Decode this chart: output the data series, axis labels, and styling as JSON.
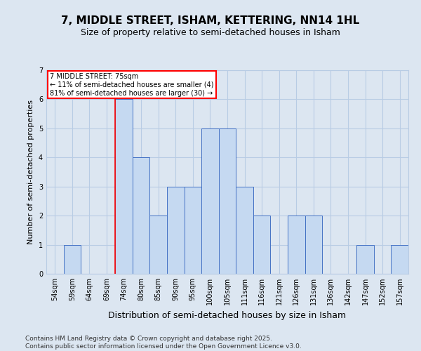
{
  "title1": "7, MIDDLE STREET, ISHAM, KETTERING, NN14 1HL",
  "title2": "Size of property relative to semi-detached houses in Isham",
  "xlabel": "Distribution of semi-detached houses by size in Isham",
  "ylabel": "Number of semi-detached properties",
  "categories": [
    "54sqm",
    "59sqm",
    "64sqm",
    "69sqm",
    "74sqm",
    "80sqm",
    "85sqm",
    "90sqm",
    "95sqm",
    "100sqm",
    "105sqm",
    "111sqm",
    "116sqm",
    "121sqm",
    "126sqm",
    "131sqm",
    "136sqm",
    "142sqm",
    "147sqm",
    "152sqm",
    "157sqm"
  ],
  "values": [
    0,
    1,
    0,
    0,
    6,
    4,
    2,
    3,
    3,
    5,
    5,
    3,
    2,
    0,
    2,
    2,
    0,
    0,
    1,
    0,
    1
  ],
  "bar_color": "#c5d9f1",
  "bar_edge_color": "#4472c4",
  "highlight_index": 4,
  "highlight_line_color": "#ff0000",
  "annotation_text": "7 MIDDLE STREET: 75sqm\n← 11% of semi-detached houses are smaller (4)\n81% of semi-detached houses are larger (30) →",
  "annotation_box_color": "#ffffff",
  "annotation_box_edge": "#ff0000",
  "ylim": [
    0,
    7
  ],
  "yticks": [
    0,
    1,
    2,
    3,
    4,
    5,
    6,
    7
  ],
  "grid_color": "#b8cce4",
  "background_color": "#dce6f1",
  "plot_bg_color": "#dce6f1",
  "footer_text": "Contains HM Land Registry data © Crown copyright and database right 2025.\nContains public sector information licensed under the Open Government Licence v3.0.",
  "title1_fontsize": 11,
  "title2_fontsize": 9,
  "xlabel_fontsize": 9,
  "ylabel_fontsize": 8,
  "footer_fontsize": 6.5,
  "tick_fontsize": 7
}
